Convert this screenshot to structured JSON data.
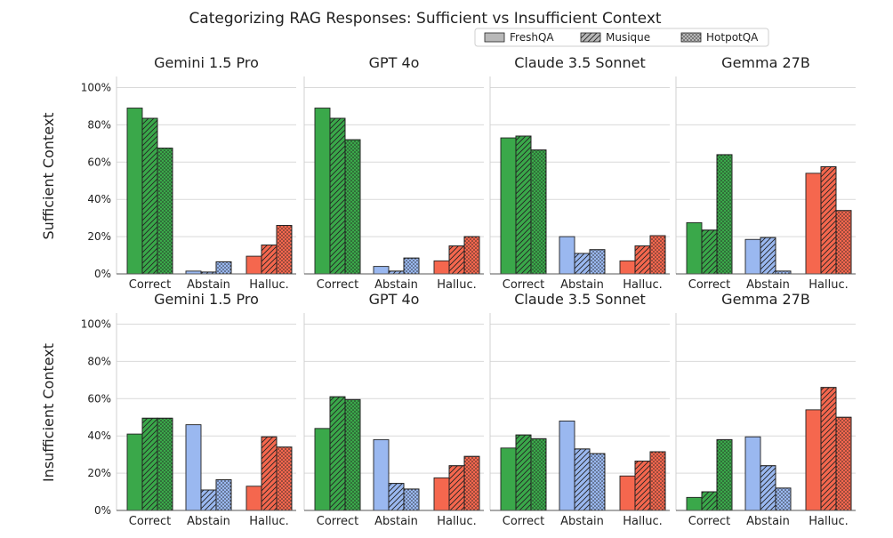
{
  "chart_data": {
    "type": "bar",
    "title": "Categorizing RAG Responses: Sufficient vs Insufficient Context",
    "legend": {
      "placement": "top-right",
      "entries": [
        {
          "name": "FreshQA",
          "pattern": "solid"
        },
        {
          "name": "Musique",
          "pattern": "hatch"
        },
        {
          "name": "HotpotQA",
          "pattern": "dots"
        }
      ]
    },
    "categories": [
      "Correct",
      "Abstain",
      "Halluc."
    ],
    "category_colors": {
      "Correct": "#3aa84a",
      "Abstain": "#9ab8f0",
      "Halluc.": "#f5674e"
    },
    "y_ticks": [
      "0%",
      "20%",
      "40%",
      "60%",
      "80%",
      "100%"
    ],
    "ylim": [
      0,
      105
    ],
    "grid": true,
    "rows": [
      {
        "label": "Sufficient Context",
        "panels": [
          {
            "title": "Gemini 1.5 Pro",
            "values": {
              "Correct": [
                89,
                83.5,
                67.5
              ],
              "Abstain": [
                1.5,
                1,
                6.5
              ],
              "Halluc.": [
                9.5,
                15.5,
                26
              ]
            }
          },
          {
            "title": "GPT 4o",
            "values": {
              "Correct": [
                89,
                83.5,
                72
              ],
              "Abstain": [
                4,
                1.5,
                8.5
              ],
              "Halluc.": [
                7,
                15,
                20
              ]
            }
          },
          {
            "title": "Claude 3.5 Sonnet",
            "values": {
              "Correct": [
                73,
                74,
                66.5
              ],
              "Abstain": [
                20,
                11,
                13
              ],
              "Halluc.": [
                7,
                15,
                20.5
              ]
            }
          },
          {
            "title": "Gemma 27B",
            "values": {
              "Correct": [
                27.5,
                23.5,
                64
              ],
              "Abstain": [
                18.5,
                19.5,
                1.5
              ],
              "Halluc.": [
                54,
                57.5,
                34
              ]
            }
          }
        ]
      },
      {
        "label": "Insufficient Context",
        "panels": [
          {
            "title": "Gemini 1.5 Pro",
            "values": {
              "Correct": [
                41,
                49.5,
                49.5
              ],
              "Abstain": [
                46,
                11,
                16.5
              ],
              "Halluc.": [
                13,
                39.5,
                34
              ]
            }
          },
          {
            "title": "GPT 4o",
            "values": {
              "Correct": [
                44,
                61,
                59.5
              ],
              "Abstain": [
                38,
                14.5,
                11.5
              ],
              "Halluc.": [
                17.5,
                24,
                29
              ]
            }
          },
          {
            "title": "Claude 3.5 Sonnet",
            "values": {
              "Correct": [
                33.5,
                40.5,
                38.5
              ],
              "Abstain": [
                48,
                33,
                30.5
              ],
              "Halluc.": [
                18.5,
                26.5,
                31.5
              ]
            }
          },
          {
            "title": "Gemma 27B",
            "values": {
              "Correct": [
                7,
                10,
                38
              ],
              "Abstain": [
                39.5,
                24,
                12
              ],
              "Halluc.": [
                54,
                66,
                50
              ]
            }
          }
        ]
      }
    ]
  }
}
